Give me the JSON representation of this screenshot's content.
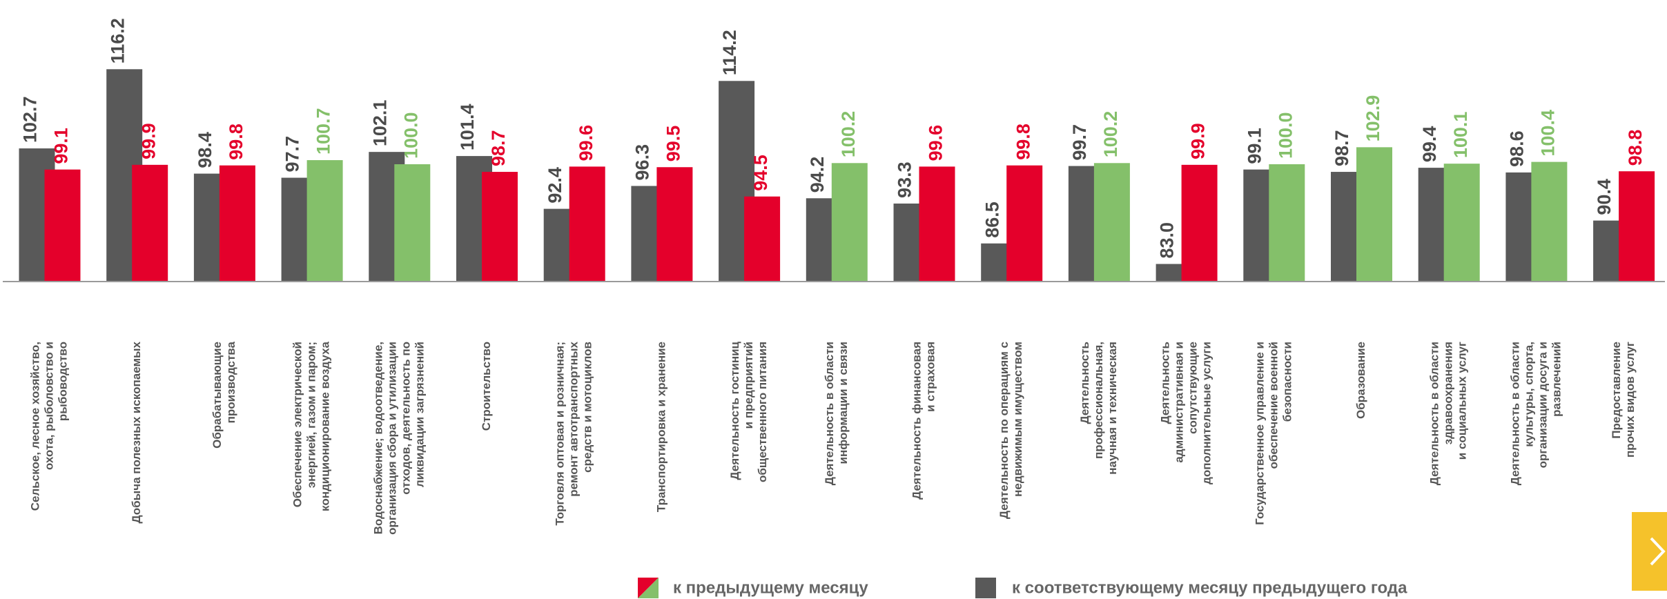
{
  "chart_data": {
    "type": "bar",
    "categories": [
      [
        "Сельское, лесное хозяйство,",
        "охота, рыболовство и",
        "рыбоводство"
      ],
      [
        "Добыча полезных ископаемых"
      ],
      [
        "Обрабатывающие",
        "производства"
      ],
      [
        "Обеспечение электрической",
        "энергией, газом и паром;",
        "кондиционирование воздуха"
      ],
      [
        "Водоснабжение; водоотведение,",
        "организация сбора и утилизации",
        "отходов, деятельность по",
        "ликвидации загрязнений"
      ],
      [
        "Строительство"
      ],
      [
        "Торговля оптовая и розничная;",
        "ремонт автотранспортных",
        "средств и мотоциклов"
      ],
      [
        "Транспортировка и хранение"
      ],
      [
        "Деятельность гостиниц",
        "и предприятий",
        "общественного питания"
      ],
      [
        "Деятельность в области",
        "информации и связи"
      ],
      [
        "Деятельность финансовая",
        "и страховая"
      ],
      [
        "Деятельность по операциям с",
        "недвижимым имуществом"
      ],
      [
        "Деятельность",
        "профессиональная,",
        "научная и техническая"
      ],
      [
        "Деятельность",
        "административная и",
        "сопутствующие",
        "дополнительные услуги"
      ],
      [
        "Государственное управление и",
        "обеспечение военной",
        "безопасности"
      ],
      [
        "Образование"
      ],
      [
        "Деятельность в области",
        "здравоохранения",
        "и социальных услуг"
      ],
      [
        "Деятельность в области",
        "культуры, спорта,",
        "организации досуга и",
        "развлечений"
      ],
      [
        "Предоставление",
        "прочих видов услуг"
      ]
    ],
    "series": [
      {
        "name": "к предыдущему месяцу",
        "values": [
          99.1,
          99.9,
          99.8,
          100.7,
          100.0,
          98.7,
          99.6,
          99.5,
          94.5,
          100.2,
          99.6,
          99.8,
          100.2,
          99.9,
          100.0,
          102.9,
          100.1,
          100.4,
          98.8
        ],
        "value_labels": [
          "99.1",
          "99.9",
          "99.8",
          "100.7",
          "100.0",
          "98.7",
          "99.6",
          "99.5",
          "94.5",
          "100.2",
          "99.6",
          "99.8",
          "100.2",
          "99.9",
          "100.0",
          "102.9",
          "100.1",
          "100.4",
          "98.8"
        ],
        "colors": [
          "#e4002b",
          "#e4002b",
          "#e4002b",
          "#84c06a",
          "#84c06a",
          "#e4002b",
          "#e4002b",
          "#e4002b",
          "#e4002b",
          "#84c06a",
          "#e4002b",
          "#e4002b",
          "#84c06a",
          "#e4002b",
          "#84c06a",
          "#84c06a",
          "#84c06a",
          "#84c06a",
          "#e4002b"
        ]
      },
      {
        "name": "к соответствующему месяцу предыдущего года",
        "color": "#595959",
        "values": [
          102.7,
          116.2,
          98.4,
          97.7,
          102.1,
          101.4,
          92.4,
          96.3,
          114.2,
          94.2,
          93.3,
          86.5,
          99.7,
          83.0,
          99.1,
          98.7,
          99.4,
          98.6,
          90.4
        ],
        "value_labels": [
          "102.7",
          "116.2",
          "98.4",
          "97.7",
          "102.1",
          "101.4",
          "92.4",
          "96.3",
          "114.2",
          "94.2",
          "93.3",
          "86.5",
          "99.7",
          "83.0",
          "99.1",
          "98.7",
          "99.4",
          "98.6",
          "90.4"
        ]
      }
    ],
    "ylim": [
      80,
      120
    ]
  }
}
